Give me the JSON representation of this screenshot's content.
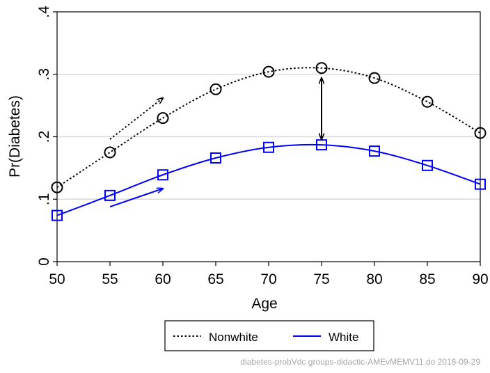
{
  "chart_data": {
    "type": "line",
    "xlabel": "Age",
    "ylabel": "Pr(Diabetes)",
    "x": [
      50,
      55,
      60,
      65,
      70,
      75,
      80,
      85,
      90
    ],
    "xlim": [
      50,
      90
    ],
    "ylim": [
      0,
      0.4
    ],
    "xticks": [
      "50",
      "55",
      "60",
      "65",
      "70",
      "75",
      "80",
      "85",
      "90"
    ],
    "yticks": [
      {
        "value": 0,
        "label": "0"
      },
      {
        "value": 0.1,
        "label": ".1"
      },
      {
        "value": 0.2,
        "label": ".2"
      },
      {
        "value": 0.3,
        "label": ".3"
      },
      {
        "value": 0.4,
        "label": ".4"
      }
    ],
    "grid": "horizontal",
    "series": [
      {
        "name": "Nonwhite",
        "color": "#000000",
        "linestyle": "dotted",
        "marker": "circle",
        "values": [
          0.119,
          0.175,
          0.23,
          0.276,
          0.304,
          0.31,
          0.294,
          0.256,
          0.206
        ]
      },
      {
        "name": "White",
        "color": "#0000ff",
        "linestyle": "solid",
        "marker": "square",
        "values": [
          0.074,
          0.106,
          0.139,
          0.166,
          0.183,
          0.187,
          0.177,
          0.154,
          0.124
        ]
      }
    ],
    "annotations": [
      {
        "type": "arrow",
        "color": "#000000",
        "style": "dotted",
        "from": [
          55,
          0.196
        ],
        "to": [
          60,
          0.262
        ]
      },
      {
        "type": "arrow",
        "color": "#0000ff",
        "style": "solid",
        "from": [
          55,
          0.088
        ],
        "to": [
          60,
          0.117
        ]
      },
      {
        "type": "double-arrow",
        "color": "#000000",
        "style": "solid",
        "from": [
          75,
          0.196
        ],
        "to": [
          75,
          0.294
        ]
      }
    ],
    "legend": {
      "position": "bottom",
      "entries": [
        "Nonwhite",
        "White"
      ]
    },
    "footer": "diabetes-probVdc groups-didactic-AMEvMEMV11.do 2016-09-29"
  }
}
